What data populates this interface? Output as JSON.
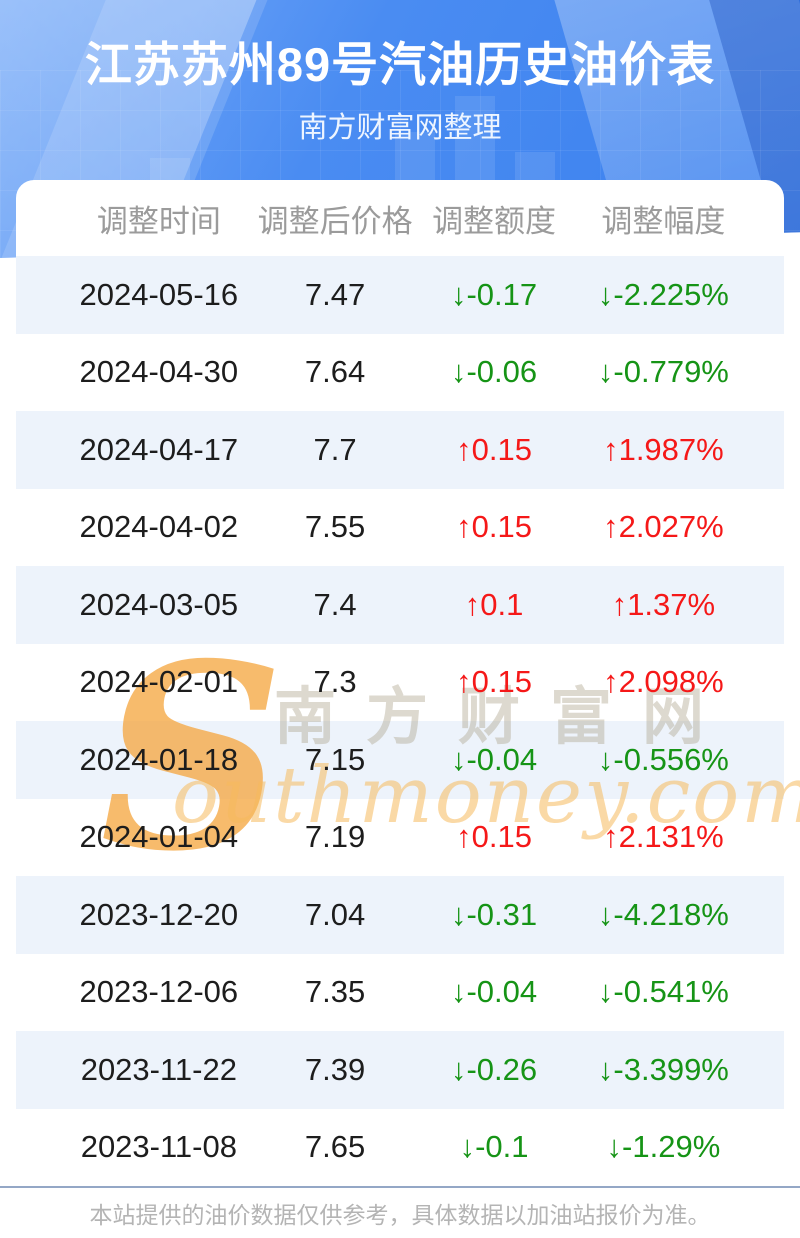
{
  "header": {
    "title": "江苏苏州89号汽油历史油价表",
    "subtitle": "南方财富网整理"
  },
  "table": {
    "columns": [
      "调整时间",
      "调整后价格",
      "调整额度",
      "调整幅度"
    ],
    "rows": [
      {
        "date": "2024-05-16",
        "price": "7.47",
        "change": "↓-0.17",
        "percent": "↓-2.225%",
        "direction": "down"
      },
      {
        "date": "2024-04-30",
        "price": "7.64",
        "change": "↓-0.06",
        "percent": "↓-0.779%",
        "direction": "down"
      },
      {
        "date": "2024-04-17",
        "price": "7.7",
        "change": "↑0.15",
        "percent": "↑1.987%",
        "direction": "up"
      },
      {
        "date": "2024-04-02",
        "price": "7.55",
        "change": "↑0.15",
        "percent": "↑2.027%",
        "direction": "up"
      },
      {
        "date": "2024-03-05",
        "price": "7.4",
        "change": "↑0.1",
        "percent": "↑1.37%",
        "direction": "up"
      },
      {
        "date": "2024-02-01",
        "price": "7.3",
        "change": "↑0.15",
        "percent": "↑2.098%",
        "direction": "up"
      },
      {
        "date": "2024-01-18",
        "price": "7.15",
        "change": "↓-0.04",
        "percent": "↓-0.556%",
        "direction": "down"
      },
      {
        "date": "2024-01-04",
        "price": "7.19",
        "change": "↑0.15",
        "percent": "↑2.131%",
        "direction": "up"
      },
      {
        "date": "2023-12-20",
        "price": "7.04",
        "change": "↓-0.31",
        "percent": "↓-4.218%",
        "direction": "down"
      },
      {
        "date": "2023-12-06",
        "price": "7.35",
        "change": "↓-0.04",
        "percent": "↓-0.541%",
        "direction": "down"
      },
      {
        "date": "2023-11-22",
        "price": "7.39",
        "change": "↓-0.26",
        "percent": "↓-3.399%",
        "direction": "down"
      },
      {
        "date": "2023-11-08",
        "price": "7.65",
        "change": "↓-0.1",
        "percent": "↓-1.29%",
        "direction": "down"
      }
    ]
  },
  "watermark": {
    "initial": "S",
    "cn": "南方财富网",
    "en": "outhmoney.com"
  },
  "footer": {
    "note": "本站提供的油价数据仅供参考，具体数据以加油站报价为准。"
  },
  "colors": {
    "up_red": "#f51818",
    "down_green": "#169416",
    "hero_blue": "#4a8cf2",
    "row_alt_blue": "#edf3fb",
    "header_text_gray": "#9b9b9b",
    "footer_line_blue": "#94a7c6"
  }
}
